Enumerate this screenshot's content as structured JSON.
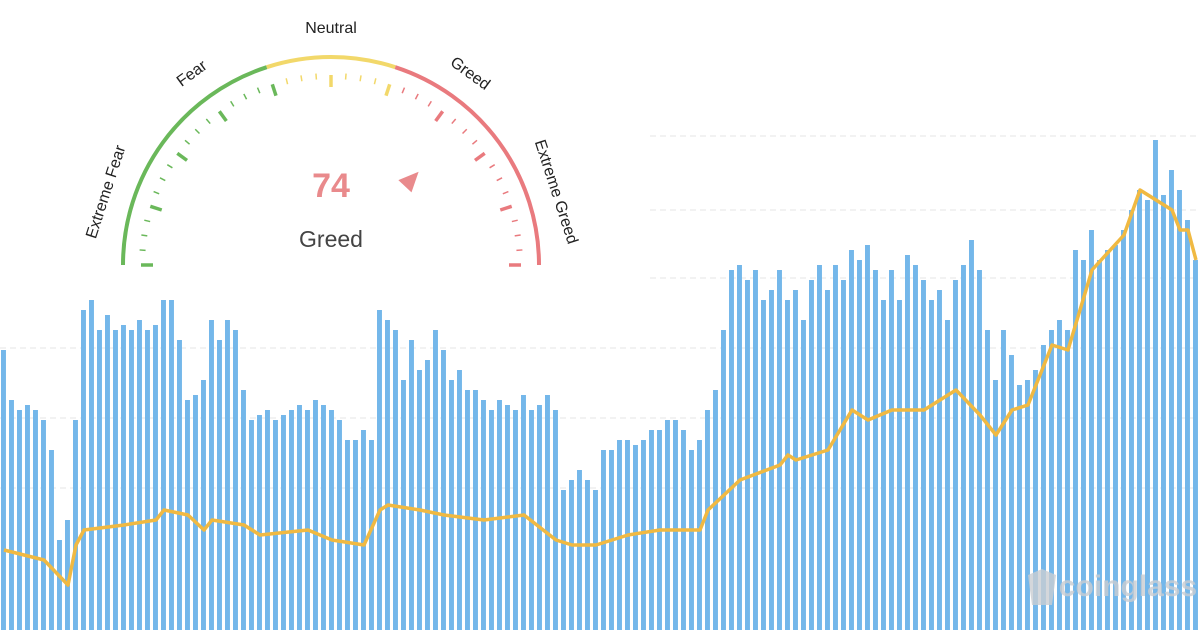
{
  "gauge": {
    "value": 74,
    "classification": "Greed",
    "min": 0,
    "max": 100,
    "labels": [
      "Extreme Fear",
      "Fear",
      "Neutral",
      "Greed",
      "Extreme Greed"
    ],
    "zone_limits": [
      0,
      40,
      60,
      100
    ],
    "zone_colors": [
      "#6ab85a",
      "#f2d86a",
      "#e97a7e"
    ]
  },
  "watermark": "coinglass",
  "chart_data": [
    {
      "type": "bar",
      "color": "#74b7ea",
      "ylim": [
        0,
        100
      ],
      "values": [
        56,
        46,
        44,
        45,
        44,
        42,
        36,
        18,
        22,
        42,
        64,
        66,
        60,
        63,
        60,
        61,
        60,
        62,
        60,
        61,
        66,
        66,
        58,
        46,
        47,
        50,
        62,
        58,
        62,
        60,
        48,
        42,
        43,
        44,
        42,
        43,
        44,
        45,
        44,
        46,
        45,
        44,
        42,
        38,
        38,
        40,
        38,
        64,
        62,
        60,
        50,
        58,
        52,
        54,
        60,
        56,
        50,
        52,
        48,
        48,
        46,
        44,
        46,
        45,
        44,
        47,
        44,
        45,
        47,
        44,
        28,
        30,
        32,
        30,
        28,
        36,
        36,
        38,
        38,
        37,
        38,
        40,
        40,
        42,
        42,
        40,
        36,
        38,
        44,
        48,
        60,
        72,
        73,
        70,
        72,
        66,
        68,
        72,
        66,
        68,
        62,
        70,
        73,
        68,
        73,
        70,
        76,
        74,
        77,
        72,
        66,
        72,
        66,
        75,
        73,
        70,
        66,
        68,
        62,
        70,
        73,
        78,
        72,
        60,
        50,
        60,
        55,
        49,
        50,
        52,
        57,
        60,
        62,
        60,
        76,
        74,
        80,
        74,
        76,
        77,
        80,
        84,
        88,
        86,
        98,
        87,
        92,
        88,
        82,
        74
      ]
    },
    {
      "type": "line",
      "color": "#f0b942",
      "xlim": [
        0,
        149
      ],
      "ylim": [
        0,
        100
      ],
      "x": [
        0,
        5,
        8,
        9,
        10,
        15,
        19,
        20,
        23,
        25,
        26,
        30,
        32,
        38,
        41,
        45,
        47,
        48,
        52,
        55,
        60,
        65,
        69,
        71,
        74,
        78,
        82,
        87,
        88,
        92,
        97,
        98,
        99,
        103,
        106,
        108,
        111,
        115,
        119,
        122,
        124,
        126,
        128,
        131,
        133,
        136,
        140,
        142,
        146,
        147,
        148,
        149
      ],
      "values": [
        16,
        14,
        9,
        17,
        20,
        21,
        22,
        24,
        23,
        20,
        22,
        21,
        19,
        20,
        18,
        17,
        24,
        25,
        24,
        23,
        22,
        23,
        18,
        17,
        17,
        19,
        20,
        20,
        24,
        30,
        33,
        35,
        34,
        36,
        44,
        42,
        44,
        44,
        48,
        43,
        39,
        44,
        45,
        57,
        56,
        72,
        79,
        88,
        84,
        80,
        80,
        74
      ]
    }
  ]
}
